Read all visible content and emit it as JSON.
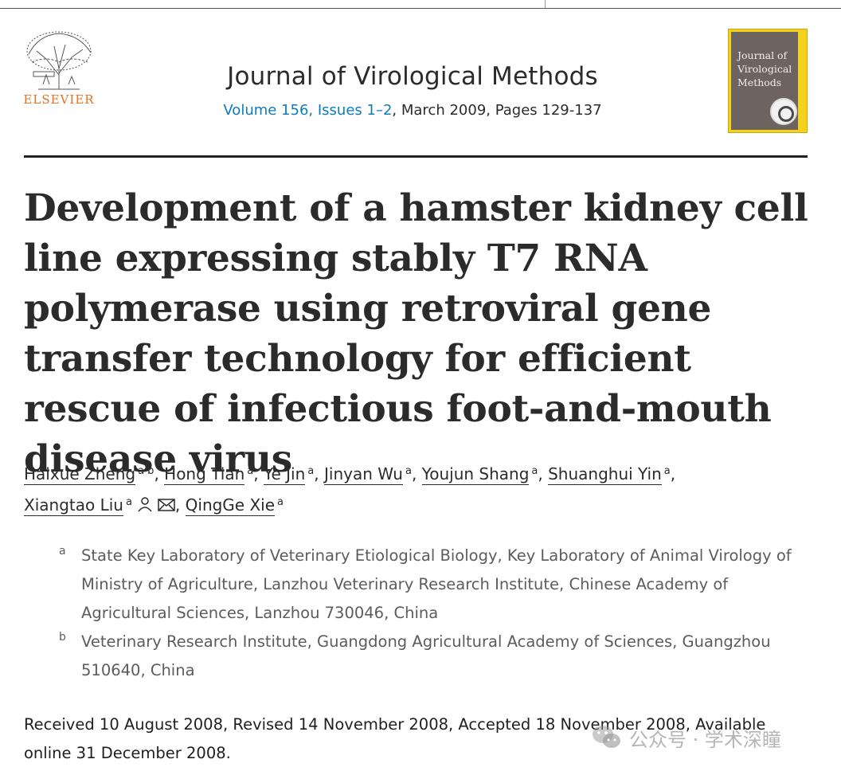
{
  "publisher": {
    "logo_word": "ELSEVIER"
  },
  "journal": {
    "title": "Journal of Virological Methods",
    "volume_link": "Volume 156, Issues 1–2",
    "details": ", March 2009, Pages 129-137",
    "cover_title": "Journal of Virological Methods"
  },
  "article": {
    "title": "Development of a hamster kidney cell line expressing stably T7 RNA polymerase using retroviral gene transfer technology for efficient rescue of infectious foot-and-mouth disease virus"
  },
  "authors": [
    {
      "name": "Haixue Zheng",
      "aff": "a b"
    },
    {
      "name": "Hong Tian",
      "aff": "a"
    },
    {
      "name": "Ye Jin",
      "aff": "a"
    },
    {
      "name": "Jinyan Wu",
      "aff": "a"
    },
    {
      "name": "Youjun Shang",
      "aff": "a"
    },
    {
      "name": "Shuanghui Yin",
      "aff": "a"
    },
    {
      "name": "Xiangtao Liu",
      "aff": "a"
    },
    {
      "name": "QingGe Xie",
      "aff": "a"
    }
  ],
  "affiliations": [
    {
      "label": "a",
      "text": "State Key Laboratory of Veterinary Etiological Biology, Key Laboratory of Animal Virology of Ministry of Agriculture, Lanzhou Veterinary Research Institute, Chinese Academy of Agricultural Sciences, Lanzhou 730046, China"
    },
    {
      "label": "b",
      "text": "Veterinary Research Institute, Guangdong Agricultural Academy of Sciences, Guangzhou 510640, China"
    }
  ],
  "history": "Received 10 August 2008, Revised 14 November 2008, Accepted 18 November 2008, Available online 31 December 2008.",
  "watermark": "公众号 · 学术深瞳",
  "icons": [
    "elsevier-tree-icon",
    "person-icon",
    "envelope-icon",
    "wechat-icon"
  ],
  "colors": {
    "link": "#0c7dbb",
    "elsevier_orange": "#e9711c",
    "cover_yellow": "#f3d11c"
  }
}
